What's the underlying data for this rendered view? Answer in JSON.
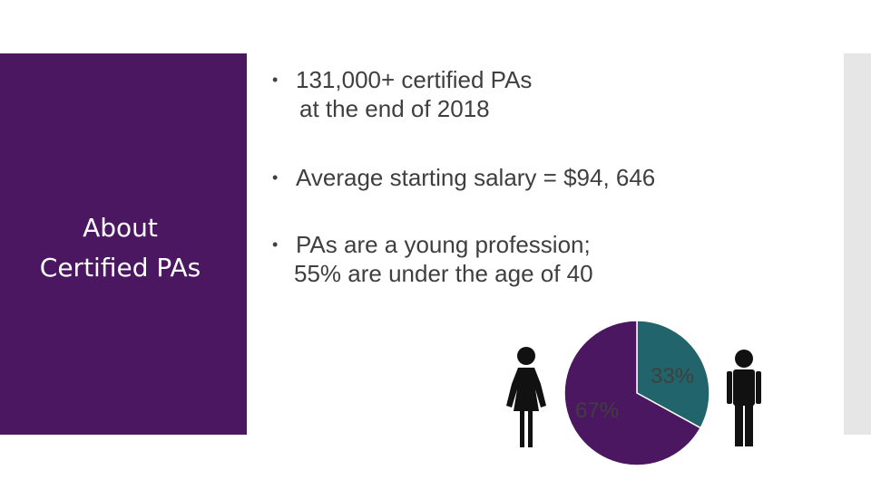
{
  "title": "About\nCertified PAs",
  "bullets": [
    {
      "line1": "131,000+ certified PAs",
      "line2": "at the end of 2018"
    },
    {
      "line1": "Average starting salary = $94, 646",
      "line2": ""
    },
    {
      "line1": "PAs are a young profession;",
      "line2": "55% are under the age of 40"
    }
  ],
  "icons": {
    "female": "woman-icon",
    "male": "man-icon"
  },
  "colors": {
    "accent": "#4a1760",
    "teal": "#22646b",
    "bar": "#e6e6e6"
  },
  "chart_data": {
    "type": "pie",
    "categories": [
      "female",
      "male"
    ],
    "values": [
      67,
      33
    ],
    "labels": [
      "67%",
      "33%"
    ],
    "colors": [
      "#4a1760",
      "#22646b"
    ]
  }
}
